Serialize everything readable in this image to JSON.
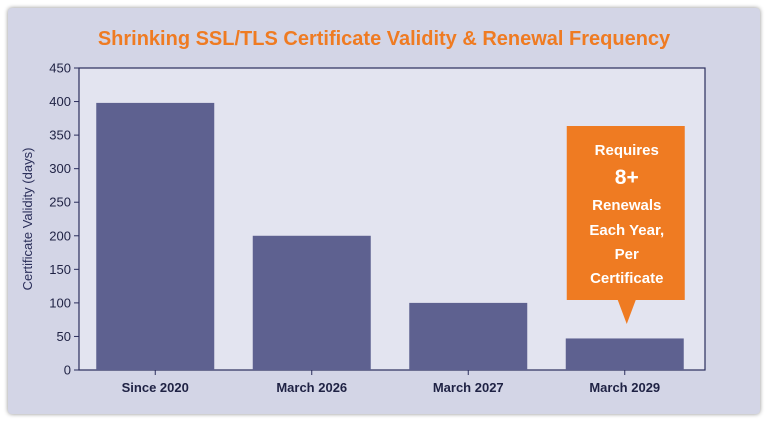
{
  "chart_data": {
    "type": "bar",
    "title": "Shrinking SSL/TLS Certificate Validity & Renewal Frequency",
    "xlabel": "",
    "ylabel": "Certificate Validity (days)",
    "categories": [
      "Since 2020",
      "March 2026",
      "March 2027",
      "March 2029"
    ],
    "values": [
      398,
      200,
      100,
      47
    ],
    "ylim": [
      0,
      450
    ],
    "yticks": [
      0,
      50,
      100,
      150,
      200,
      250,
      300,
      350,
      400,
      450
    ],
    "grid": false,
    "annotation": {
      "target_category": "March 2029",
      "lines": [
        "Requires",
        "8+",
        "Renewals",
        "Each Year,",
        "Per",
        "Certificate"
      ]
    }
  },
  "colors": {
    "bar": "#5e6190",
    "plot_bg": "#e3e4f0",
    "card_bg": "#d3d5e6",
    "axis": "#2a2d5c",
    "accent": "#ef7b22"
  }
}
